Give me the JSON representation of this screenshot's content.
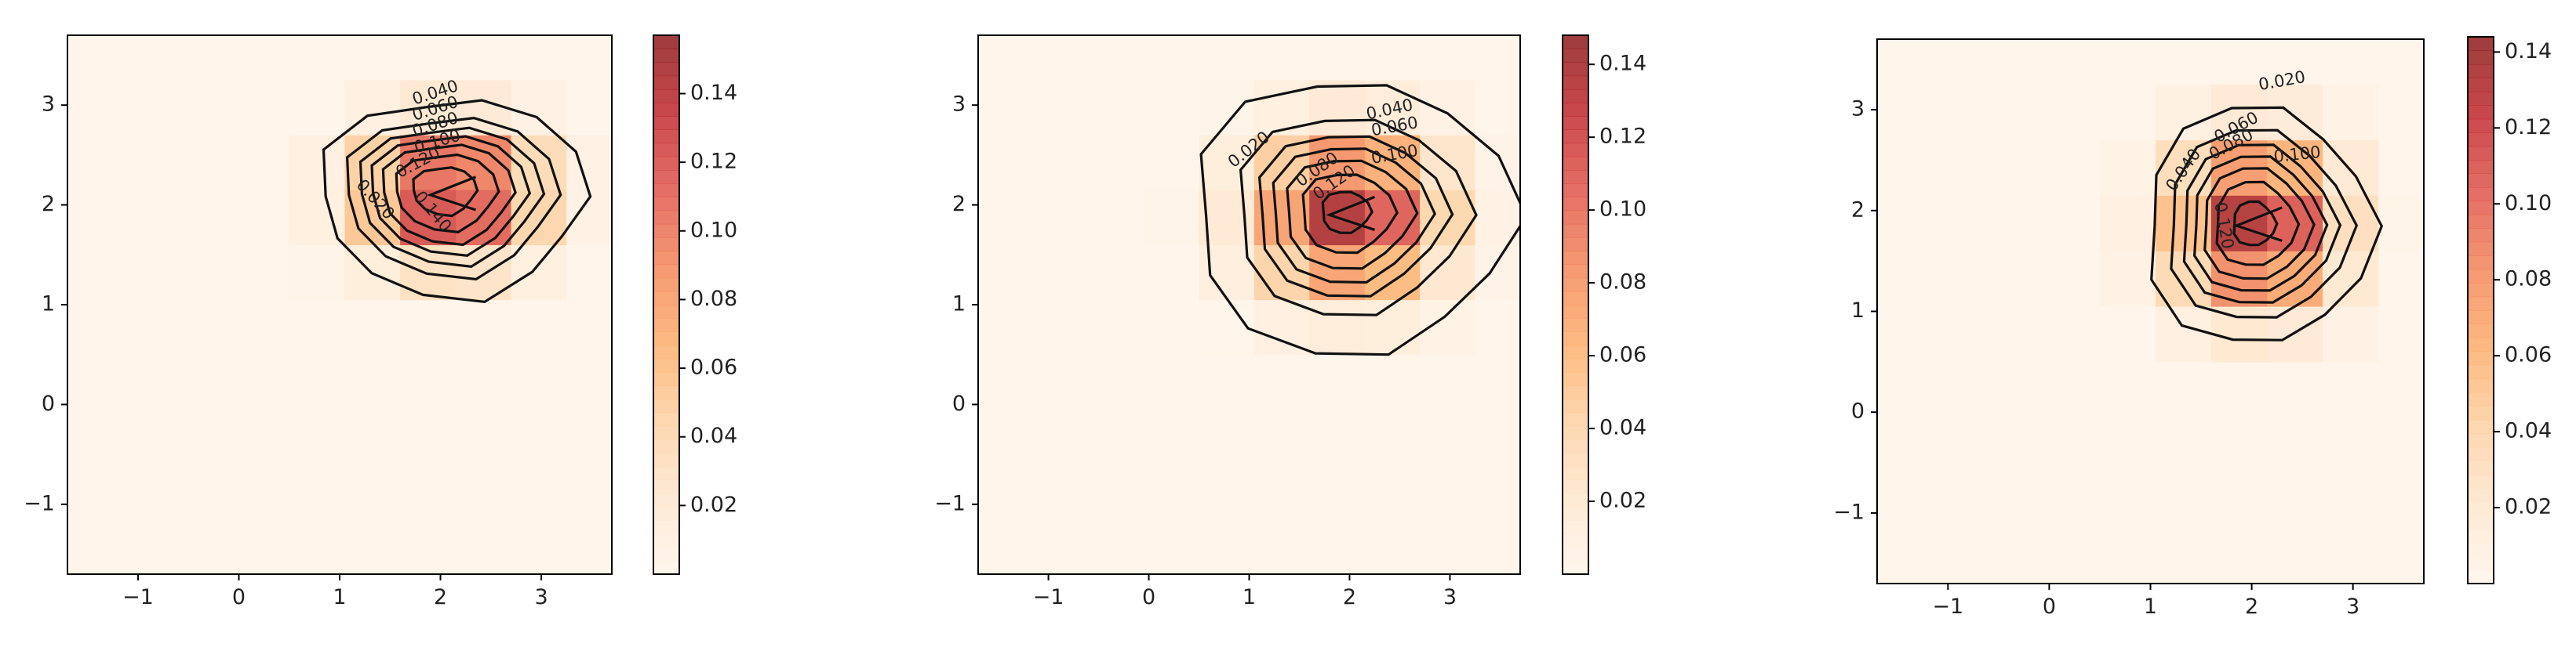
{
  "colors": {
    "colormap": [
      "#fff5eb",
      "#fee6ce",
      "#fdd0a2",
      "#fdae6b",
      "#f4875a",
      "#e0554b",
      "#c0282d",
      "#8c1a1a"
    ],
    "contour": "#111111",
    "axis": "#000000"
  },
  "chart_data": [
    {
      "type": "heatmap",
      "title": "",
      "xlabel": "",
      "ylabel": "",
      "xlim": [
        -1.7,
        3.7
      ],
      "ylim": [
        -1.7,
        3.7
      ],
      "xticks": [
        "-1",
        "0",
        "1",
        "2",
        "3"
      ],
      "yticks": [
        "-1",
        "0",
        "1",
        "2",
        "3"
      ],
      "colorbar": {
        "min": 0,
        "max": 0.157,
        "ticks": [
          "0.02",
          "0.04",
          "0.06",
          "0.08",
          "0.10",
          "0.12",
          "0.14"
        ]
      },
      "peak": {
        "x": 2.1,
        "y": 2.1,
        "value": 0.15
      },
      "contour_levels": [
        "0.020",
        "0.040",
        "0.060",
        "0.080",
        "0.100",
        "0.120",
        "0.140"
      ],
      "contour_labels": [
        "0.040",
        "0.060",
        "0.080",
        "0.100",
        "0.120",
        "0.020",
        "0.140"
      ]
    },
    {
      "type": "heatmap",
      "title": "",
      "xlabel": "",
      "ylabel": "",
      "xlim": [
        -1.7,
        3.7
      ],
      "ylim": [
        -1.7,
        3.7
      ],
      "xticks": [
        "-1",
        "0",
        "1",
        "2",
        "3"
      ],
      "yticks": [
        "-1",
        "0",
        "1",
        "2",
        "3"
      ],
      "colorbar": {
        "min": 0,
        "max": 0.148,
        "ticks": [
          "0.02",
          "0.04",
          "0.06",
          "0.08",
          "0.10",
          "0.12",
          "0.14"
        ]
      },
      "peak": {
        "x": 2.0,
        "y": 1.9,
        "value": 0.14
      },
      "contour_levels": [
        "0.020",
        "0.040",
        "0.060",
        "0.080",
        "0.100",
        "0.120",
        "0.140"
      ],
      "contour_labels": [
        "0.020",
        "0.040",
        "0.060",
        "0.080",
        "0.100",
        "0.120"
      ]
    },
    {
      "type": "heatmap",
      "title": "",
      "xlabel": "",
      "ylabel": "",
      "xlim": [
        -1.7,
        3.7
      ],
      "ylim": [
        -1.7,
        3.7
      ],
      "xticks": [
        "-1",
        "0",
        "1",
        "2",
        "3"
      ],
      "yticks": [
        "-1",
        "0",
        "1",
        "2",
        "3"
      ],
      "colorbar": {
        "min": 0,
        "max": 0.144,
        "ticks": [
          "0.02",
          "0.04",
          "0.06",
          "0.08",
          "0.10",
          "0.12",
          "0.14"
        ]
      },
      "peak": {
        "x": 2.05,
        "y": 1.85,
        "value": 0.14
      },
      "contour_levels": [
        "0.020",
        "0.040",
        "0.060",
        "0.080",
        "0.100",
        "0.120",
        "0.140"
      ],
      "contour_labels": [
        "0.020",
        "0.040",
        "0.060",
        "0.080",
        "0.100",
        "0.120"
      ]
    }
  ]
}
